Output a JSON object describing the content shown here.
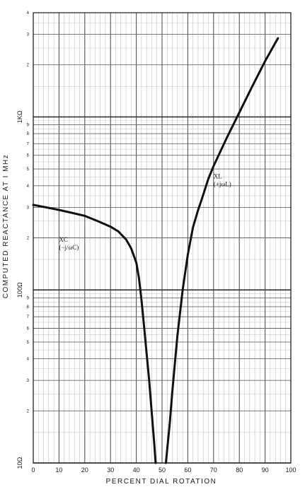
{
  "chart_data": {
    "type": "line",
    "title": "",
    "xlabel": "PERCENT DIAL ROTATION",
    "ylabel": "COMPUTED REACTANCE AT I MHz",
    "xlim": [
      0,
      100
    ],
    "ylim": [
      10,
      4000
    ],
    "yscale": "log",
    "grid": true,
    "x_ticks": [
      "0",
      "10",
      "20",
      "30",
      "40",
      "50",
      "60",
      "70",
      "80",
      "90",
      "100"
    ],
    "y_major_labels": [
      {
        "value": 10,
        "text": "10Ω"
      },
      {
        "value": 100,
        "text": "100Ω"
      },
      {
        "value": 1000,
        "text": "1KΩ"
      }
    ],
    "y_minor_labels": [
      "2",
      "3",
      "4",
      "5",
      "6",
      "7",
      "8",
      "9"
    ],
    "series": [
      {
        "name": "XC",
        "annotation_lines": [
          "XC",
          "(−j/ωC)"
        ],
        "x": [
          0,
          5,
          10,
          15,
          20,
          25,
          30,
          33,
          36,
          38,
          40,
          41,
          42,
          43,
          44,
          45,
          46,
          47,
          47.5
        ],
        "y": [
          310,
          300,
          290,
          279,
          268,
          250,
          232,
          218,
          196,
          174,
          144,
          118,
          88,
          62,
          43,
          30,
          19.5,
          12.8,
          10
        ]
      },
      {
        "name": "XL",
        "annotation_lines": [
          "XL",
          "(+jωL)"
        ],
        "x": [
          51.5,
          52,
          53,
          54,
          55,
          56,
          58,
          60,
          62,
          64,
          65,
          68,
          70,
          75,
          80,
          85,
          90,
          95
        ],
        "y": [
          10,
          12,
          17,
          26,
          38,
          55,
          100,
          160,
          230,
          290,
          320,
          440,
          520,
          750,
          1060,
          1500,
          2100,
          2850
        ]
      }
    ]
  }
}
